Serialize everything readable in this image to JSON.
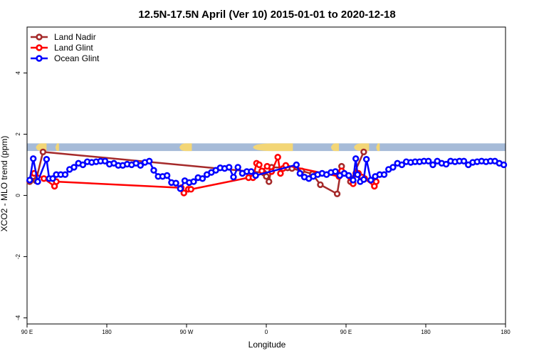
{
  "chart_data": {
    "type": "line",
    "title": "12.5N-17.5N April (Ver 10)   2015-01-01 to 2020-12-18",
    "xlabel": "Longitude",
    "ylabel": "XCO2 - MLO trend (ppm)",
    "xlim": [
      0,
      540
    ],
    "ylim": [
      -4.2,
      5.5
    ],
    "x_ticks": [
      {
        "value": 0,
        "label": "90 E"
      },
      {
        "value": 90,
        "label": "180"
      },
      {
        "value": 180,
        "label": "90 W"
      },
      {
        "value": 270,
        "label": "0"
      },
      {
        "value": 360,
        "label": "90 E"
      },
      {
        "value": 450,
        "label": "180"
      }
    ],
    "y_ticks": [
      -4,
      -2,
      0,
      2,
      4
    ],
    "legend_position": "top-left",
    "land_mask_colors": {
      "ocean": "#a6bbd8",
      "land": "#f3d676"
    },
    "land_segments": [
      [
        10,
        22
      ],
      [
        32,
        36
      ],
      [
        172,
        186
      ],
      [
        255,
        300
      ],
      [
        343,
        352
      ],
      [
        369,
        386
      ],
      [
        394,
        398
      ]
    ],
    "land_mask_band": [
      1.45,
      1.7
    ],
    "series": [
      {
        "name": "Land Nadir",
        "color": "#a52a2a",
        "x": [
          3,
          7,
          10,
          18,
          267,
          270,
          273,
          276,
          294,
          299,
          310,
          322,
          331,
          350,
          355,
          365,
          380
        ],
        "y": [
          0.45,
          0.62,
          0.48,
          1.42,
          0.74,
          0.62,
          0.45,
          0.92,
          0.9,
          0.88,
          0.8,
          0.7,
          0.35,
          0.05,
          0.95,
          0.45,
          1.42
        ]
      },
      {
        "name": "Land Glint",
        "color": "#ff0000",
        "x": [
          8,
          19,
          31,
          33,
          174,
          177,
          182,
          185,
          250,
          255,
          259,
          262,
          265,
          271,
          276,
          283,
          286,
          289,
          292,
          352,
          355,
          368,
          371,
          374,
          378,
          381,
          392,
          394
        ],
        "y": [
          0.72,
          0.55,
          0.3,
          0.45,
          0.25,
          0.08,
          0.2,
          0.2,
          0.58,
          0.58,
          1.05,
          1.0,
          0.8,
          0.95,
          0.78,
          1.25,
          0.72,
          0.88,
          0.98,
          0.62,
          0.8,
          0.38,
          0.72,
          0.72,
          0.6,
          0.55,
          0.3,
          0.45
        ]
      },
      {
        "name": "Ocean Glint",
        "color": "#0000ff",
        "x": [
          3,
          7,
          12,
          22,
          25,
          29,
          33,
          38,
          43,
          48,
          53,
          58,
          63,
          68,
          73,
          78,
          83,
          88,
          93,
          98,
          103,
          108,
          113,
          118,
          123,
          128,
          133,
          138,
          143,
          148,
          153,
          158,
          163,
          168,
          173,
          178,
          183,
          188,
          193,
          198,
          203,
          208,
          213,
          218,
          223,
          228,
          233,
          238,
          243,
          248,
          253,
          258,
          304,
          308,
          313,
          318,
          323,
          328,
          333,
          338,
          343,
          348,
          353,
          358,
          363,
          368,
          371,
          373,
          376,
          380,
          383,
          388,
          393,
          398,
          403,
          408,
          413,
          418,
          423,
          428,
          433,
          438,
          443,
          448,
          453,
          458,
          463,
          468,
          473,
          478,
          483,
          488,
          493,
          498,
          503,
          508,
          513,
          518,
          523,
          528,
          533,
          538
        ],
        "y": [
          0.5,
          1.2,
          0.45,
          1.18,
          0.55,
          0.55,
          0.68,
          0.68,
          0.68,
          0.85,
          0.92,
          1.05,
          1.0,
          1.1,
          1.08,
          1.1,
          1.12,
          1.12,
          1.02,
          1.05,
          0.98,
          0.98,
          1.02,
          1.0,
          1.05,
          0.98,
          1.08,
          1.12,
          0.82,
          0.62,
          0.62,
          0.65,
          0.42,
          0.4,
          0.22,
          0.48,
          0.42,
          0.45,
          0.58,
          0.55,
          0.68,
          0.75,
          0.82,
          0.9,
          0.88,
          0.92,
          0.6,
          0.92,
          0.72,
          0.78,
          0.78,
          0.65,
          1.0,
          0.72,
          0.6,
          0.55,
          0.62,
          0.68,
          0.72,
          0.68,
          0.75,
          0.78,
          0.65,
          0.72,
          0.65,
          0.5,
          1.2,
          0.68,
          0.45,
          0.52,
          1.18,
          0.5,
          0.62,
          0.68,
          0.68,
          0.85,
          0.92,
          1.05,
          1.0,
          1.1,
          1.08,
          1.1,
          1.1,
          1.12,
          1.12,
          1.0,
          1.12,
          1.05,
          1.02,
          1.12,
          1.1,
          1.12,
          1.12,
          1.0,
          1.08,
          1.1,
          1.12,
          1.1,
          1.12,
          1.12,
          1.05,
          1.0
        ]
      }
    ]
  }
}
